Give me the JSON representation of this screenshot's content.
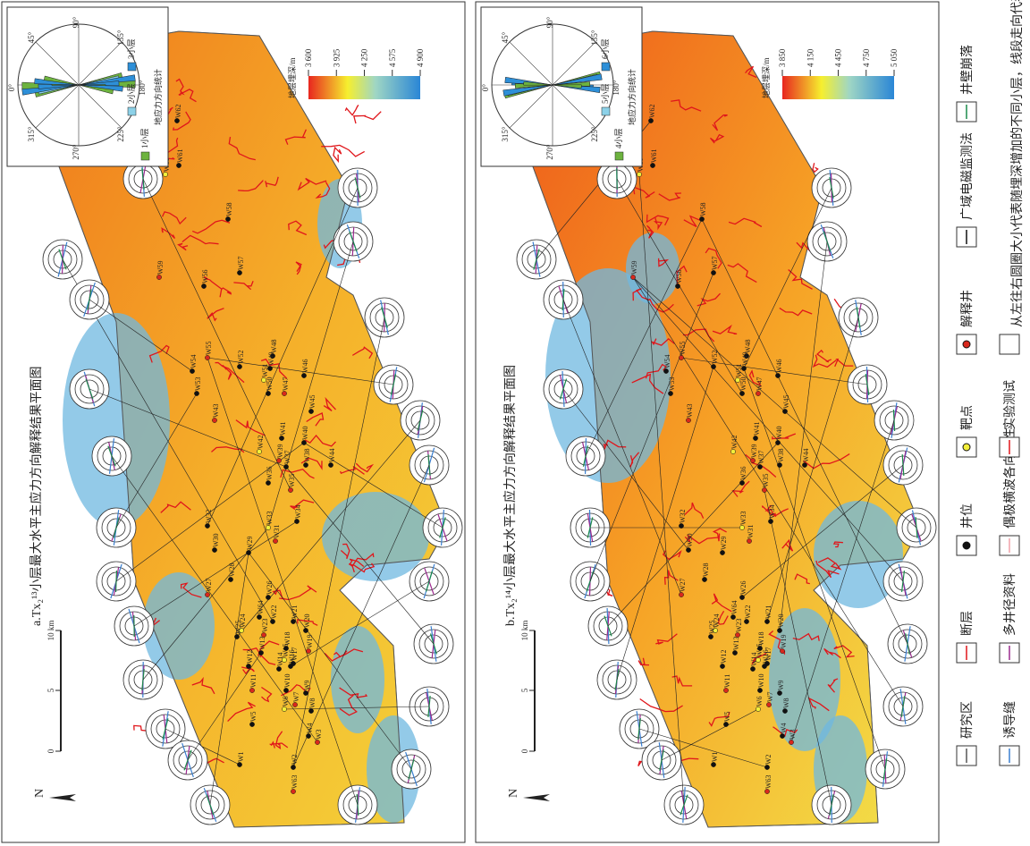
{
  "panels": [
    {
      "title": "a.Tx₂¹³小层最大水平主应力方向解释结果平面图",
      "depth_legend": {
        "title": "地层埋深/m",
        "ticks": [
          {
            "value": 3600,
            "label": "3 600"
          },
          {
            "value": 3925,
            "label": "3 925"
          },
          {
            "value": 4250,
            "label": "4 250"
          },
          {
            "value": 4575,
            "label": "4 575"
          },
          {
            "value": 4900,
            "label": "4 900"
          }
        ]
      },
      "rose": {
        "angles": [
          "90°",
          "45°",
          "135°",
          "0°",
          "180°",
          "315°",
          "225°",
          "270°"
        ],
        "layers": [
          "1小层",
          "2小层",
          "3小层"
        ],
        "caption": "地应力方向统计"
      },
      "scale": [
        "0",
        "5",
        "10 km"
      ],
      "north": "N"
    },
    {
      "title": "b.Tx₂¹⁴小层最大水平主应力方向解释结果平面图",
      "depth_legend": {
        "title": "地层埋深/m",
        "ticks": [
          {
            "value": 3850,
            "label": "3 850"
          },
          {
            "value": 4150,
            "label": "4 150"
          },
          {
            "value": 4450,
            "label": "4 450"
          },
          {
            "value": 4750,
            "label": "4 750"
          },
          {
            "value": 5050,
            "label": "5 050"
          }
        ]
      },
      "rose": {
        "angles": [
          "90°",
          "45°",
          "135°",
          "0°",
          "180°",
          "315°",
          "225°",
          "270°"
        ],
        "layers": [
          "4小层",
          "5小层",
          "6小层"
        ],
        "caption": "地应力方向统计"
      },
      "scale": [
        "0",
        "5",
        "10 km"
      ],
      "north": "N"
    }
  ],
  "wells": [
    "W1",
    "W2",
    "W3",
    "W4",
    "W5",
    "W6",
    "W7",
    "W8",
    "W9",
    "W10",
    "W11",
    "W12",
    "W13",
    "W14",
    "W15",
    "W16",
    "W17",
    "W18",
    "W19",
    "W20",
    "W21",
    "W22",
    "W23",
    "W24",
    "W25",
    "W26",
    "W27",
    "W28",
    "W29",
    "W30",
    "W31",
    "W32",
    "W33",
    "W34",
    "W35",
    "W36",
    "W37",
    "W38",
    "W39",
    "W40",
    "W41",
    "W42",
    "W43",
    "W44",
    "W45",
    "W46",
    "W47",
    "W48",
    "W49",
    "W50",
    "W51",
    "W52",
    "W53",
    "W54",
    "W55",
    "W56",
    "W57",
    "W58",
    "W59",
    "W60",
    "W61",
    "W62",
    "W63",
    "W64"
  ],
  "legend": {
    "items": [
      "研究区",
      "断层",
      "井位",
      "靶点",
      "解释井",
      "广域电磁监测法",
      "井壁崩落",
      "诱导缝",
      "多井径资料",
      "偶极横波各向异性",
      "实验测试"
    ],
    "note": "从左往右圆圈大小代表随埋深增加的不同小层，线段走向代表该小层现今地应力方向"
  }
}
